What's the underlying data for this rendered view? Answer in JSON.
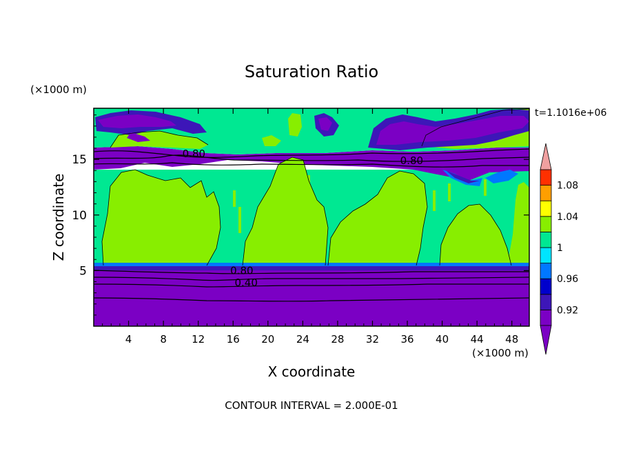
{
  "chart_data": {
    "type": "heatmap",
    "title": "Saturation Ratio",
    "xlabel": "X coordinate",
    "ylabel": "Z coordinate",
    "x_unit": "(×1000 m)",
    "y_unit": "(×1000 m)",
    "time_label": "t=1.1016e+06",
    "footer": "CONTOUR INTERVAL = 2.000E-01",
    "xlim": [
      0,
      50
    ],
    "ylim": [
      0,
      19.6
    ],
    "x_ticks": [
      4,
      8,
      12,
      16,
      20,
      24,
      28,
      32,
      36,
      40,
      44,
      48
    ],
    "y_ticks": [
      5,
      10,
      15
    ],
    "grid": false,
    "colorbar": {
      "levels": [
        0.9,
        0.92,
        0.94,
        0.96,
        0.98,
        1.0,
        1.02,
        1.04,
        1.06,
        1.08,
        1.1
      ],
      "labels": [
        {
          "value": 0.92,
          "text": "0.92"
        },
        {
          "value": 0.96,
          "text": "0.96"
        },
        {
          "value": 1.0,
          "text": "1"
        },
        {
          "value": 1.04,
          "text": "1.04"
        },
        {
          "value": 1.08,
          "text": "1.08"
        }
      ],
      "colors": [
        "#7b00c4",
        "#3d16b8",
        "#0000cc",
        "#0078ff",
        "#00e5ff",
        "#00e892",
        "#88ee00",
        "#ffff00",
        "#ff9f00",
        "#ff3000",
        "#f0a0a0"
      ],
      "under_color": "#7b00c4",
      "over_color": "#f0a0a0"
    },
    "field_bands": [
      {
        "z_range": [
          0,
          5.4
        ],
        "value": "below 0.90",
        "color": "#7b00c4"
      },
      {
        "z_range": [
          5.4,
          14.3
        ],
        "value": "0.98–1.02 with cloud columns",
        "color": "#00e892"
      },
      {
        "z_range": [
          14.3,
          16.3
        ],
        "value": "below 0.90",
        "color": "#7b00c4"
      },
      {
        "z_range": [
          16.3,
          19.6
        ],
        "value": "0.98–1.02 with dry patches",
        "color": "#00e892"
      }
    ],
    "contour_labels": [
      {
        "x": 11.5,
        "z": 15.5,
        "text": "0.80"
      },
      {
        "x": 36.5,
        "z": 14.9,
        "text": "0.80"
      },
      {
        "x": 17.0,
        "z": 5.0,
        "text": "0.80"
      },
      {
        "x": 17.5,
        "z": 3.9,
        "text": "0.40"
      }
    ]
  }
}
